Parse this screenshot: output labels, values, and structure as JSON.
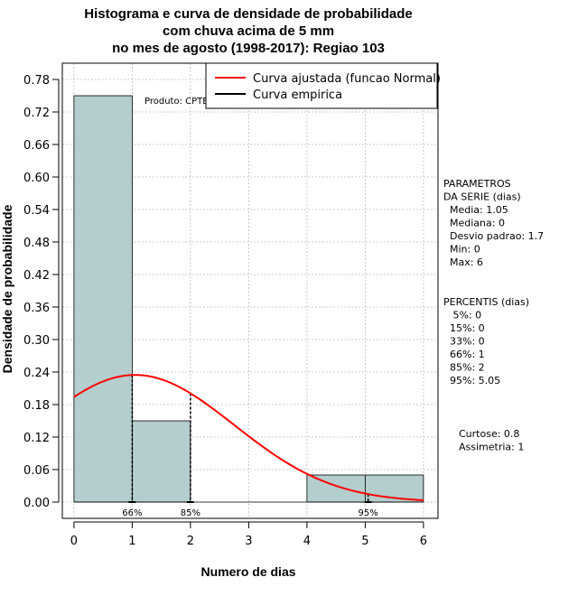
{
  "chart_data": {
    "type": "bar",
    "title_lines": [
      "Histograma e curva de densidade de probabilidade",
      "com chuva acima de 5 mm",
      "no mes de agosto (1998-2017): Regiao 103"
    ],
    "xlabel": "Numero de dias",
    "ylabel": "Densidade de probabilidade",
    "xlim": [
      -0.2,
      6.25
    ],
    "ylim": [
      -0.03,
      0.81
    ],
    "x_ticks": [
      0,
      1,
      2,
      3,
      4,
      5,
      6
    ],
    "x_tick_labels": [
      "0",
      "1",
      "2",
      "3",
      "4",
      "5",
      "6"
    ],
    "y_ticks": [
      0.0,
      0.06,
      0.12,
      0.18,
      0.24,
      0.3,
      0.36,
      0.42,
      0.48,
      0.54,
      0.6,
      0.66,
      0.72,
      0.78
    ],
    "y_tick_labels": [
      "0.00",
      "0.06",
      "0.12",
      "0.18",
      "0.24",
      "0.30",
      "0.36",
      "0.42",
      "0.48",
      "0.54",
      "0.60",
      "0.66",
      "0.72",
      "0.78"
    ],
    "grid": true,
    "bars": [
      {
        "x0": 0,
        "x1": 1,
        "value": 0.75
      },
      {
        "x0": 1,
        "x1": 2,
        "value": 0.15
      },
      {
        "x0": 2,
        "x1": 3,
        "value": 0.0
      },
      {
        "x0": 3,
        "x1": 4,
        "value": 0.0
      },
      {
        "x0": 4,
        "x1": 5,
        "value": 0.05
      },
      {
        "x0": 5,
        "x1": 6,
        "value": 0.05
      }
    ],
    "bar_color": "#b4cdcd",
    "fitted_curve": {
      "name": "Curva ajustada (funcao Normal)",
      "color": "#ff0000",
      "distribution": "normal",
      "mean": 1.05,
      "sd": 1.7,
      "x_range": [
        0,
        6
      ]
    },
    "empirical_curve": {
      "name": "Curva empirica",
      "color": "#000000"
    },
    "percentile_markers": [
      {
        "x": 1,
        "label": "66%"
      },
      {
        "x": 2,
        "label": "85%"
      },
      {
        "x": 5.05,
        "label": "95%"
      }
    ],
    "legend_position": "top-right",
    "legend_entries": [
      "Curva ajustada (funcao Normal)",
      "Curva empirica"
    ],
    "product_label": "Produto: CPTEC/INPE",
    "side_panels": {
      "parametros": [
        "PARAMETROS",
        "DA SERIE (dias)",
        "  Media: 1.05",
        "  Mediana: 0",
        "  Desvio padrao: 1.7",
        "  Min: 0",
        "  Max: 6"
      ],
      "percentis": [
        "PERCENTIS (dias)",
        "   5%: 0",
        "  15%: 0",
        "  33%: 0",
        "  66%: 1",
        "  85%: 2",
        "  95%: 5.05"
      ],
      "extra": [
        "Curtose: 0.8",
        "Assimetria: 1"
      ]
    }
  }
}
